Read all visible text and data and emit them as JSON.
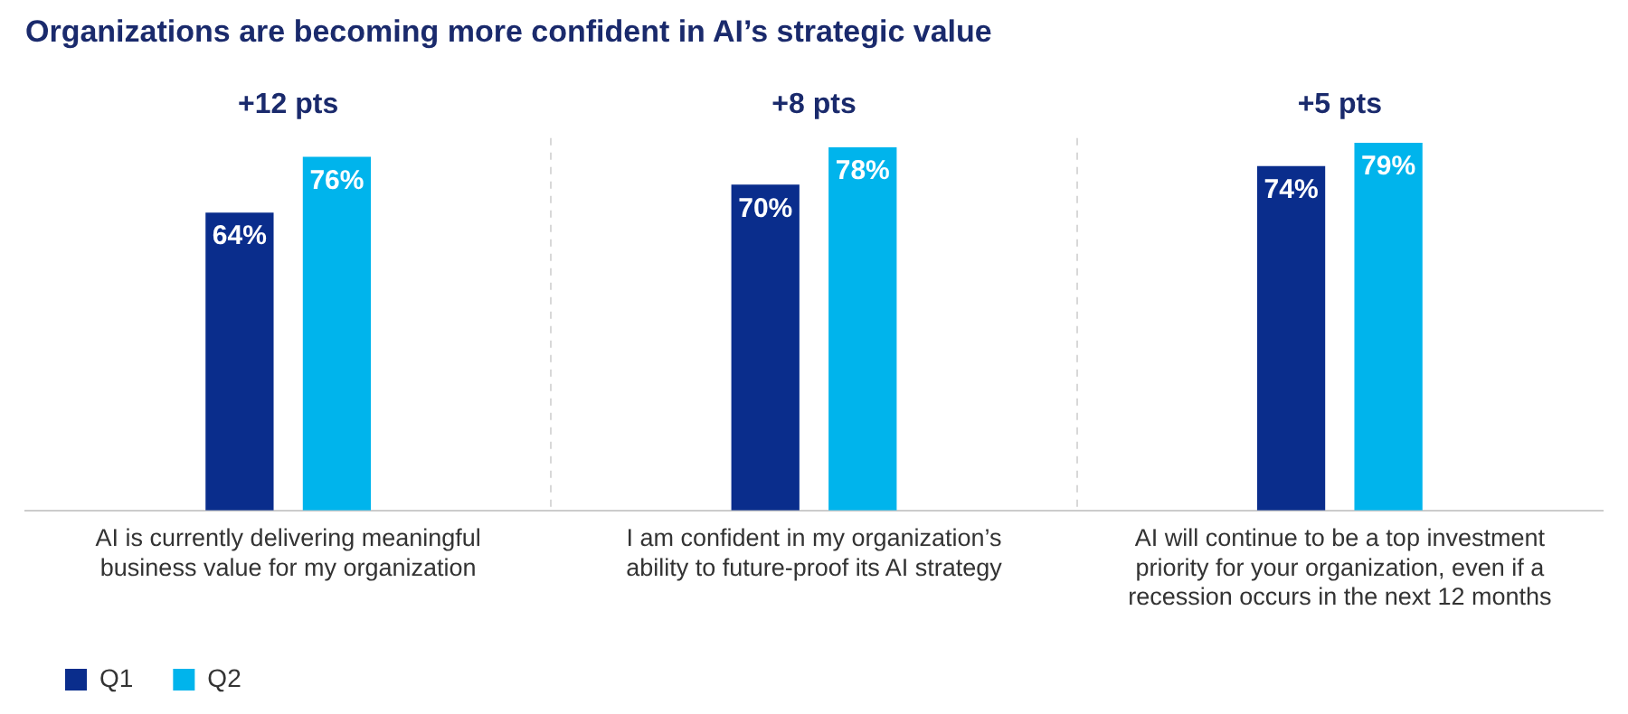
{
  "chart_data": {
    "type": "bar",
    "title": "Organizations are becoming more confident in AI’s strategic value",
    "categories": [
      "AI is currently delivering meaningful business value for my organization",
      "I am confident in my organization’s ability to future-proof its AI strategy",
      "AI will continue to be a top investment priority for your organization, even if a recession occurs in the next 12 months"
    ],
    "series": [
      {
        "name": "Q1",
        "color": "#0a2d8c",
        "values": [
          64,
          70,
          74
        ],
        "value_labels": [
          "64%",
          "70%",
          "74%"
        ]
      },
      {
        "name": "Q2",
        "color": "#00b4ec",
        "values": [
          76,
          78,
          79
        ],
        "value_labels": [
          "76%",
          "78%",
          "79%"
        ]
      }
    ],
    "annotations": [
      "+12 pts",
      "+8 pts",
      "+5 pts"
    ],
    "grid": "x",
    "legend": "bottom left"
  }
}
